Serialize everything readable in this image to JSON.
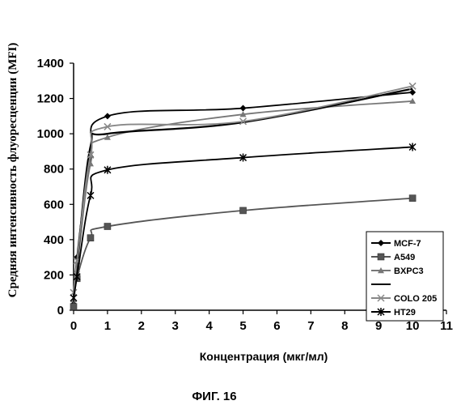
{
  "chart_data": {
    "type": "line",
    "xlabel": "Концентрация (мкг/мл)",
    "ylabel": "Средняя интенсивность флуоресценции (MFI)",
    "xlim": [
      0,
      11
    ],
    "ylim": [
      0,
      1400
    ],
    "x_ticks": [
      "0",
      "1",
      "2",
      "3",
      "4",
      "5",
      "6",
      "7",
      "8",
      "9",
      "10",
      "11"
    ],
    "y_ticks": [
      "0",
      "200",
      "400",
      "600",
      "800",
      "1000",
      "1200",
      "1400"
    ],
    "grid": false,
    "legend_position": "bottom-right",
    "caption": "ФИГ. 16",
    "series": [
      {
        "name": "MCF-7",
        "color": "#000000",
        "marker": "diamond",
        "x": [
          0,
          0.1,
          0.5,
          1,
          5,
          10
        ],
        "y": [
          35,
          300,
          870,
          1100,
          1145,
          1235
        ]
      },
      {
        "name": "A549",
        "color": "#555555",
        "marker": "square",
        "x": [
          0,
          0.1,
          0.5,
          1,
          5,
          10
        ],
        "y": [
          20,
          180,
          410,
          475,
          565,
          635
        ]
      },
      {
        "name": "BXPC3",
        "color": "#777777",
        "marker": "triangle",
        "x": [
          0,
          0.1,
          0.5,
          1,
          5,
          10
        ],
        "y": [
          60,
          230,
          830,
          980,
          1110,
          1185
        ]
      },
      {
        "name": "",
        "color": "#000000",
        "marker": "none",
        "x": [
          0,
          0.1,
          0.5,
          1,
          5,
          10
        ],
        "y": [
          90,
          260,
          930,
          1000,
          1065,
          1255
        ]
      },
      {
        "name": "COLO 205",
        "color": "#888888",
        "marker": "cross",
        "x": [
          0,
          0.1,
          0.5,
          1,
          5,
          10
        ],
        "y": [
          100,
          280,
          880,
          1040,
          1070,
          1270
        ]
      },
      {
        "name": "HT29",
        "color": "#000000",
        "marker": "star",
        "x": [
          0,
          0.1,
          0.5,
          1,
          5,
          10
        ],
        "y": [
          70,
          190,
          650,
          795,
          865,
          925
        ]
      }
    ]
  }
}
